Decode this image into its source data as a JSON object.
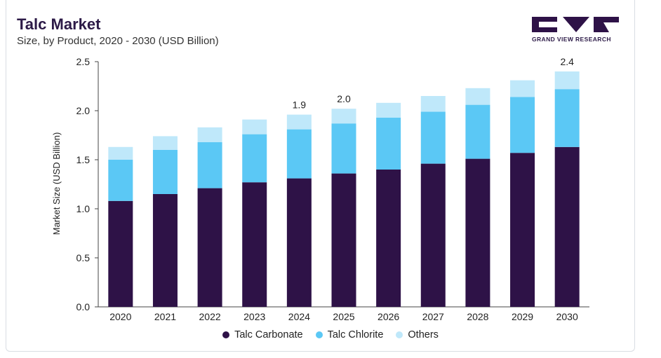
{
  "header": {
    "title": "Talc Market",
    "subtitle": "Size, by Product, 2020 - 2030 (USD Billion)"
  },
  "brand": {
    "name": "GRAND VIEW RESEARCH",
    "logo_icon": "gvr-logo-icon"
  },
  "colors": {
    "Talc Carbonate": "#2e1247",
    "Talc Chlorite": "#5bc8f5",
    "Others": "#bfe8fa",
    "accent": "#5bc8f5"
  },
  "chart_data": {
    "type": "bar",
    "stacked": true,
    "title": "Talc Market",
    "subtitle": "Size, by Product, 2020 - 2030 (USD Billion)",
    "xlabel": "",
    "ylabel": "Market Size (USD Billion)",
    "ylim": [
      0,
      2.5
    ],
    "yticks": [
      "0.0",
      "0.5",
      "1.0",
      "1.5",
      "2.0",
      "2.5"
    ],
    "grid": false,
    "legend_position": "bottom",
    "categories": [
      "2020",
      "2021",
      "2022",
      "2023",
      "2024",
      "2025",
      "2026",
      "2027",
      "2028",
      "2029",
      "2030"
    ],
    "series": [
      {
        "name": "Talc Carbonate",
        "values": [
          1.08,
          1.15,
          1.21,
          1.27,
          1.31,
          1.36,
          1.4,
          1.46,
          1.51,
          1.57,
          1.63
        ]
      },
      {
        "name": "Talc Chlorite",
        "values": [
          0.42,
          0.45,
          0.47,
          0.49,
          0.5,
          0.51,
          0.53,
          0.53,
          0.55,
          0.57,
          0.59
        ]
      },
      {
        "name": "Others",
        "values": [
          0.13,
          0.14,
          0.15,
          0.15,
          0.15,
          0.15,
          0.15,
          0.16,
          0.17,
          0.17,
          0.18
        ]
      }
    ],
    "data_labels": [
      {
        "category": "2024",
        "text": "1.9"
      },
      {
        "category": "2025",
        "text": "2.0"
      },
      {
        "category": "2030",
        "text": "2.4"
      }
    ]
  }
}
